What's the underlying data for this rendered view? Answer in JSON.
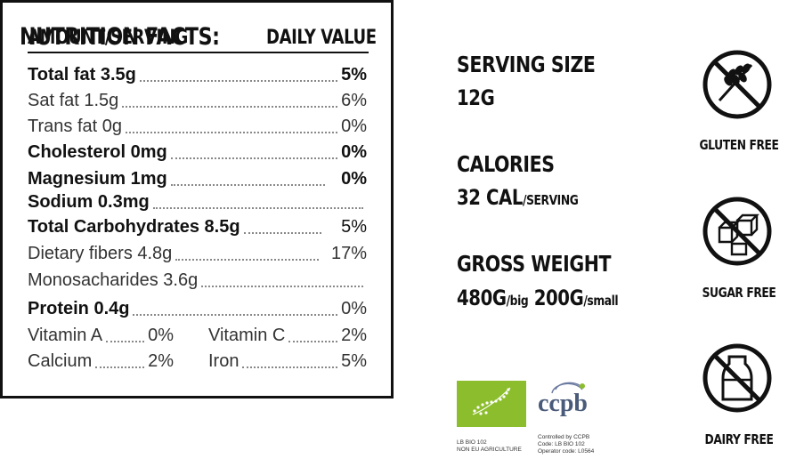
{
  "title": "NUTRITION FACTS:",
  "table": {
    "header_left": "AMOUNT/SERVING",
    "header_right": "DAILY VALUE",
    "rows": [
      {
        "label": "Total fat 3.5g",
        "value": "5%"
      },
      {
        "label": "Sat fat 1.5g",
        "value": "6%"
      },
      {
        "label": "Trans fat 0g",
        "value": "0%"
      },
      {
        "label": "Cholesterol 0mg",
        "value": "0%"
      },
      {
        "label": "Magnesium 1mg",
        "value": "0%"
      },
      {
        "label": "Sodium 0.3mg",
        "value": ""
      },
      {
        "label": "Total Carbohydrates 8.5g",
        "value": "5%"
      },
      {
        "label": "Dietary fibers 4.8g",
        "value": "17%"
      },
      {
        "label": "Monosacharides 3.6g",
        "value": ""
      },
      {
        "label": "Protein 0.4g",
        "value": "0%"
      }
    ],
    "vitamins": [
      {
        "label": "Vitamin A",
        "value": "0%"
      },
      {
        "label": "Vitamin C",
        "value": "2%"
      },
      {
        "label": "Calcium",
        "value": "2%"
      },
      {
        "label": "Iron",
        "value": "5%"
      }
    ]
  },
  "info": {
    "serving_label": "SERVING SIZE",
    "serving_value": "12G",
    "calories_label": "CALORIES",
    "calories_value": "32 CAL",
    "calories_unit": "/SERVING",
    "weight_label": "GROSS WEIGHT",
    "weight_big": "480G",
    "weight_big_unit": "/big",
    "weight_small": "200G",
    "weight_small_unit": "/small"
  },
  "certs": {
    "eu_code": "LB BIO 102",
    "eu_text": "NON EU AGRICULTURE",
    "ccpb_logo": "ccpb",
    "ccpb_line1": "Controlled by CCPB",
    "ccpb_line2": "Code: LB BIO 102",
    "ccpb_line3": "Operator code: L0564"
  },
  "badges": [
    {
      "label": "GLUTEN FREE",
      "icon": "no-wheat-icon"
    },
    {
      "label": "SUGAR FREE",
      "icon": "no-sugar-cubes-icon"
    },
    {
      "label": "DAIRY FREE",
      "icon": "no-milk-bottle-icon"
    }
  ],
  "colors": {
    "eu_green": "#8cbd2c",
    "ccpb_blue": "#4a5b7a"
  }
}
